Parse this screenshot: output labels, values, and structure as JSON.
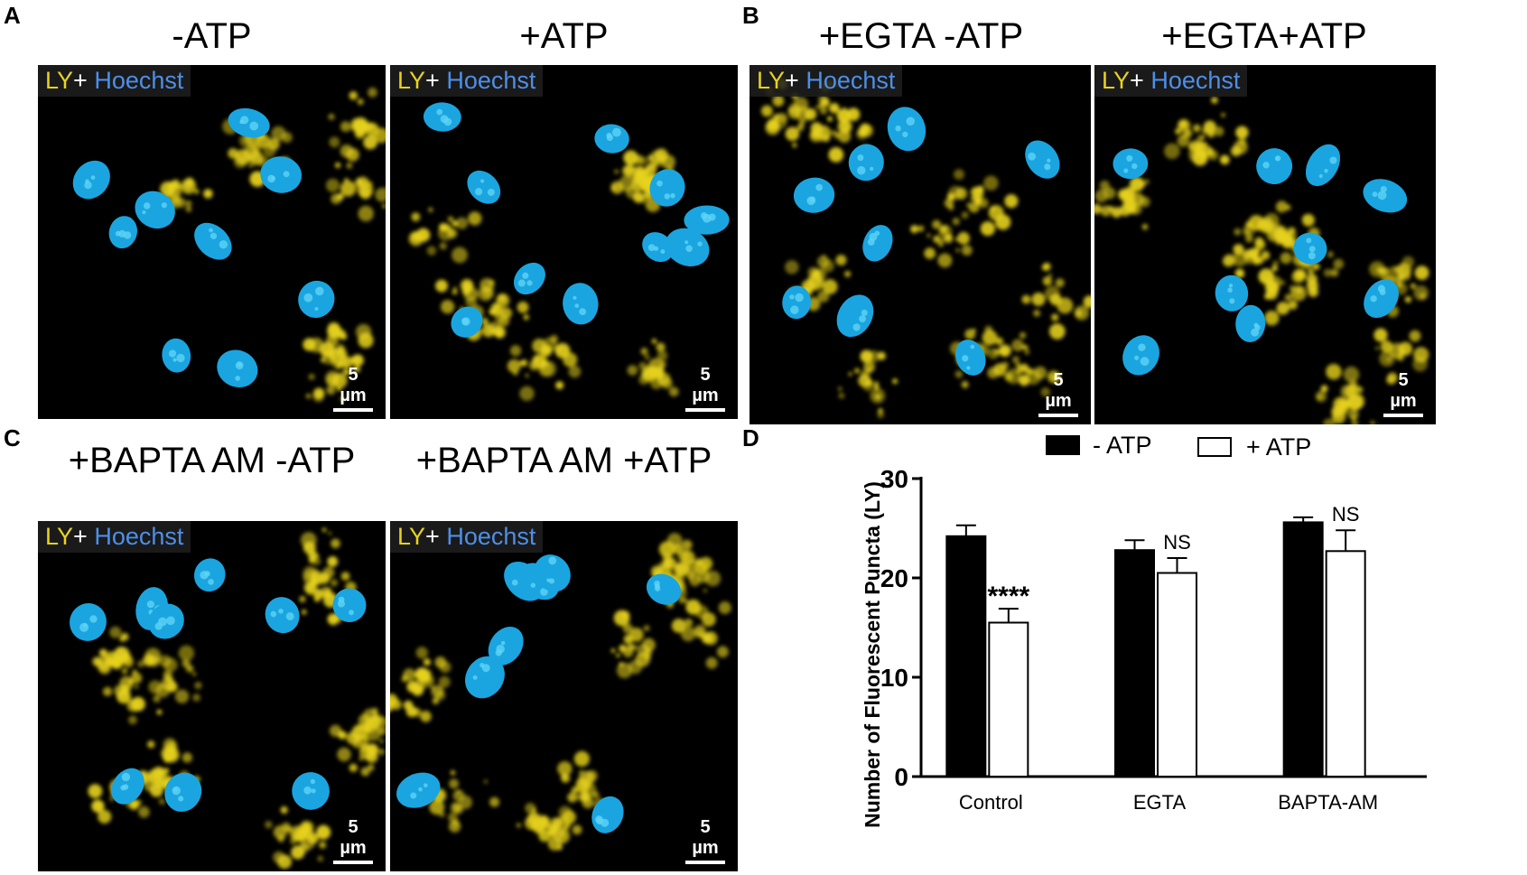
{
  "panels": {
    "A": "A",
    "B": "B",
    "C": "C",
    "D": "D"
  },
  "images": [
    {
      "title": "-ATP",
      "stain": {
        "ly": "LY",
        "plus": "+",
        "hoechst": "Hoechst"
      },
      "scale": "5 µm"
    },
    {
      "title": "+ATP",
      "stain": {
        "ly": "LY",
        "plus": "+",
        "hoechst": "Hoechst"
      },
      "scale": "5 µm"
    },
    {
      "title": "+EGTA -ATP",
      "stain": {
        "ly": "LY",
        "plus": "+",
        "hoechst": "Hoechst"
      },
      "scale": "5 µm"
    },
    {
      "title": "+EGTA+ATP",
      "stain": {
        "ly": "LY",
        "plus": "+",
        "hoechst": "Hoechst"
      },
      "scale": "5 µm"
    },
    {
      "title": "+BAPTA AM -ATP",
      "stain": {
        "ly": "LY",
        "plus": "+",
        "hoechst": "Hoechst"
      },
      "scale": "5 µm"
    },
    {
      "title": "+BAPTA AM +ATP",
      "stain": {
        "ly": "LY",
        "plus": "+",
        "hoechst": "Hoechst"
      },
      "scale": "5 µm"
    }
  ],
  "colors": {
    "lysosome_yellow": "#e6d21c",
    "nucleus_blue": "#1aa5e0",
    "nucleus_spot": "#5fd3f5",
    "background": "#000000"
  },
  "chart_data": {
    "type": "bar",
    "categories": [
      "Control",
      "EGTA",
      "BAPTA-AM"
    ],
    "series": [
      {
        "name": "- ATP",
        "values": [
          24.2,
          22.8,
          25.6
        ],
        "errors": [
          1.1,
          1.0,
          0.5
        ],
        "fill": "#000000"
      },
      {
        "name": "+ ATP",
        "values": [
          15.5,
          20.5,
          22.7
        ],
        "errors": [
          1.4,
          1.5,
          2.1
        ],
        "fill": "#ffffff"
      }
    ],
    "annotations": [
      "****",
      "NS",
      "NS"
    ],
    "ylabel": "Number of Fluorescent Puncta (LY)",
    "xlabel": "",
    "ylim": [
      0,
      30
    ],
    "yticks": [
      0,
      10,
      20,
      30
    ],
    "legend_position": "top"
  }
}
